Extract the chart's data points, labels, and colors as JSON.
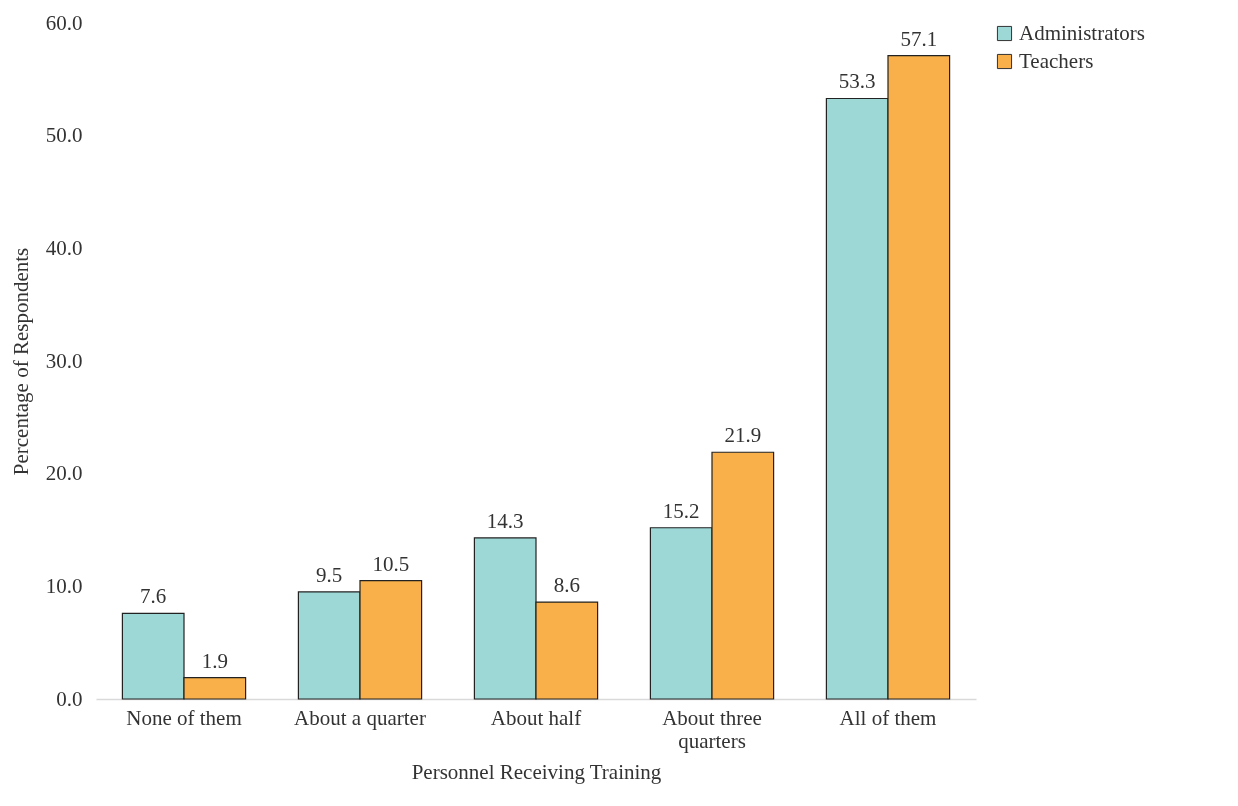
{
  "chart_data": {
    "type": "bar",
    "xlabel": "Personnel Receiving Training",
    "ylabel": "Percentage of Respondents",
    "categories": [
      "None of them",
      "About a quarter",
      "About half",
      "About three quarters",
      "All of them"
    ],
    "series": [
      {
        "name": "Administrators",
        "color": "#9dd8d6",
        "values": [
          7.6,
          9.5,
          14.3,
          15.2,
          53.3
        ]
      },
      {
        "name": "Teachers",
        "color": "#f9b04a",
        "values": [
          1.9,
          10.5,
          8.6,
          21.9,
          57.1
        ]
      }
    ],
    "ylim": [
      0,
      60
    ],
    "yticks": [
      {
        "value": 0,
        "label": "0.0"
      },
      {
        "value": 10,
        "label": "10.0"
      },
      {
        "value": 20,
        "label": "20.0"
      },
      {
        "value": 30,
        "label": "30.0"
      },
      {
        "value": 40,
        "label": "40.0"
      },
      {
        "value": 50,
        "label": "50.0"
      },
      {
        "value": 60,
        "label": "60.0"
      }
    ],
    "data_labels": true,
    "grid": false,
    "legend": "right"
  }
}
